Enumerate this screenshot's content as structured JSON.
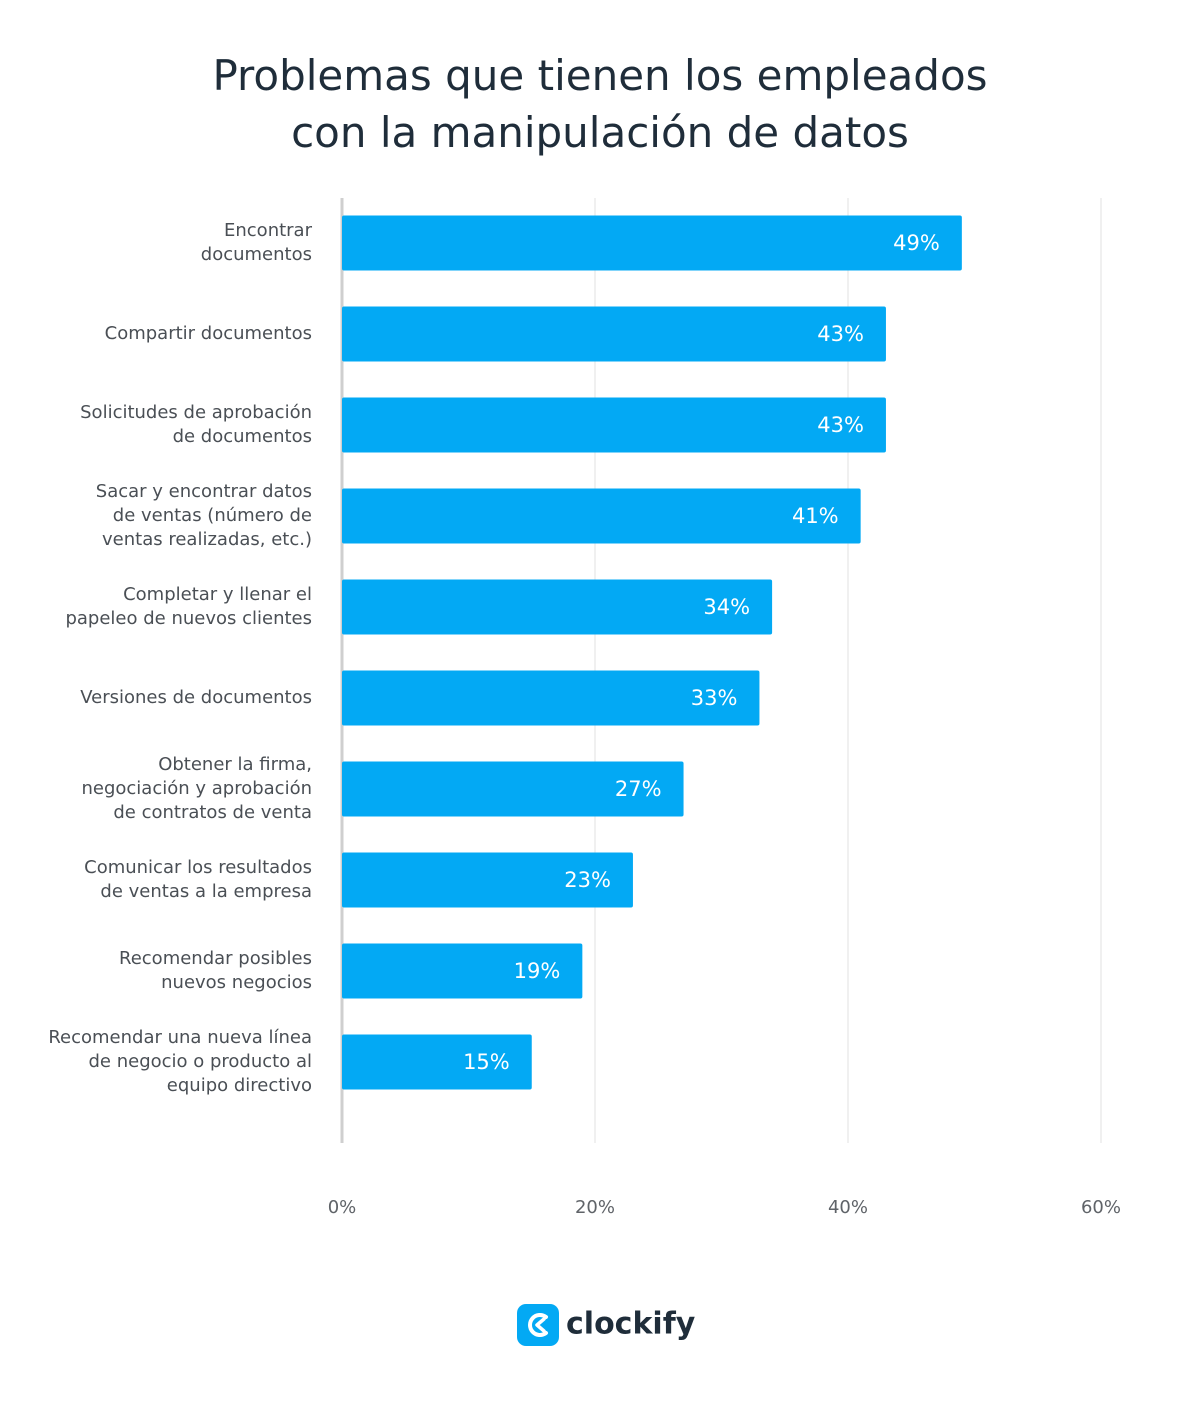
{
  "chart_data": {
    "type": "bar",
    "orientation": "horizontal",
    "title": "Problemas que tienen los empleados\ncon la manipulación de datos",
    "categories": [
      "Encontrar\ndocumentos",
      "Compartir documentos",
      "Solicitudes de aprobación\nde documentos",
      "Sacar y encontrar datos\nde ventas (número de\nventas realizadas, etc.)",
      "Completar y llenar el\npapeleo de nuevos clientes",
      "Versiones de documentos",
      "Obtener la firma,\nnegociación y aprobación\nde contratos de venta",
      "Comunicar los resultados\nde ventas a la empresa",
      "Recomendar posibles\nnuevos negocios",
      "Recomendar una nueva línea\nde negocio o producto al\nequipo directivo"
    ],
    "values": [
      49,
      43,
      43,
      41,
      34,
      33,
      27,
      23,
      19,
      15
    ],
    "value_labels": [
      "49%",
      "43%",
      "43%",
      "41%",
      "34%",
      "33%",
      "27%",
      "23%",
      "19%",
      "15%"
    ],
    "color": "#03a9f4",
    "xlim": [
      0,
      60
    ],
    "xticks": [
      {
        "value": 0,
        "label": "0%"
      },
      {
        "value": 20,
        "label": "20%"
      },
      {
        "value": 40,
        "label": "40%"
      },
      {
        "value": 60,
        "label": "60%"
      }
    ],
    "grid": true
  },
  "logo": "clockify"
}
